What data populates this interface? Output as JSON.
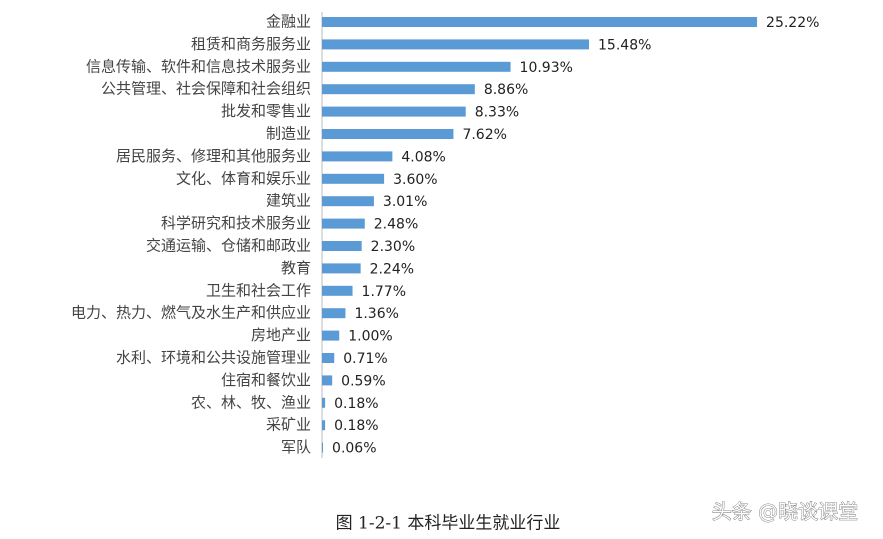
{
  "chart_data": {
    "type": "bar",
    "orientation": "horizontal",
    "title": "图 1-2-1 本科毕业生就业行业",
    "watermark": "头条 @晓谈课堂",
    "categories": [
      "金融业",
      "租赁和商务服务业",
      "信息传输、软件和信息技术服务业",
      "公共管理、社会保障和社会组织",
      "批发和零售业",
      "制造业",
      "居民服务、修理和其他服务业",
      "文化、体育和娱乐业",
      "建筑业",
      "科学研究和技术服务业",
      "交通运输、仓储和邮政业",
      "教育",
      "卫生和社会工作",
      "电力、热力、燃气及水生产和供应业",
      "房地产业",
      "水利、环境和公共设施管理业",
      "住宿和餐饮业",
      "农、林、牧、渔业",
      "采矿业",
      "军队"
    ],
    "values": [
      25.22,
      15.48,
      10.93,
      8.86,
      8.33,
      7.62,
      4.08,
      3.6,
      3.01,
      2.48,
      2.3,
      2.24,
      1.77,
      1.36,
      1.0,
      0.71,
      0.59,
      0.18,
      0.18,
      0.06
    ],
    "value_labels": [
      "25.22%",
      "15.48%",
      "10.93%",
      "8.86%",
      "8.33%",
      "7.62%",
      "4.08%",
      "3.60%",
      "3.01%",
      "2.48%",
      "2.30%",
      "2.24%",
      "1.77%",
      "1.36%",
      "1.00%",
      "0.71%",
      "0.59%",
      "0.18%",
      "0.18%",
      "0.06%"
    ],
    "color": "#5b9bd5"
  }
}
